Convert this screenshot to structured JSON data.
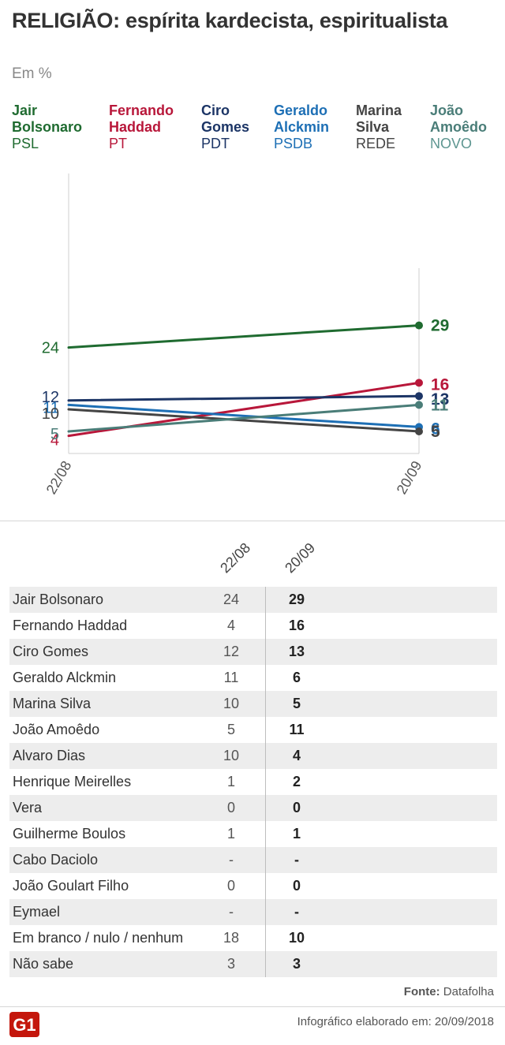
{
  "header": {
    "title": "RELIGIÃO: espírita kardecista, espiritualista",
    "subtitle": "Em %"
  },
  "legend": [
    {
      "name": "Jair Bolsonaro",
      "line1": "Jair",
      "line2": "Bolsonaro",
      "party": "PSL",
      "color": "#1f6b30",
      "party_color": "#1f6b30"
    },
    {
      "name": "Fernando Haddad",
      "line1": "Fernando",
      "line2": "Haddad",
      "party": "PT",
      "color": "#b8173a",
      "party_color": "#b8173a"
    },
    {
      "name": "Ciro Gomes",
      "line1": "Ciro",
      "line2": "Gomes",
      "party": "PDT",
      "color": "#1c3566",
      "party_color": "#1c3566"
    },
    {
      "name": "Geraldo Alckmin",
      "line1": "Geraldo",
      "line2": "Alckmin",
      "party": "PSDB",
      "color": "#1d6fb5",
      "party_color": "#1d6fb5"
    },
    {
      "name": "Marina Silva",
      "line1": "Marina",
      "line2": "Silva",
      "party": "REDE",
      "color": "#444444",
      "party_color": "#444444"
    },
    {
      "name": "João Amoêdo",
      "line1": "João",
      "line2": "Amoêdo",
      "party": "NOVO",
      "color": "#4a7d78",
      "party_color": "#5e9691"
    }
  ],
  "chart_data": {
    "type": "line",
    "title": "RELIGIÃO: espírita kardecista, espiritualista",
    "subtitle": "Em %",
    "x": [
      "22/08",
      "20/09"
    ],
    "ylim": [
      0,
      40
    ],
    "grid": false,
    "series": [
      {
        "name": "Jair Bolsonaro",
        "values": [
          24,
          29
        ],
        "color": "#1f6b30",
        "start_label": "24",
        "end_label": "29"
      },
      {
        "name": "Fernando Haddad",
        "values": [
          4,
          16
        ],
        "color": "#b8173a",
        "start_label": "4",
        "end_label": "16"
      },
      {
        "name": "Ciro Gomes",
        "values": [
          12,
          13
        ],
        "color": "#1c3566",
        "start_label": "12",
        "end_label": "13"
      },
      {
        "name": "Geraldo Alckmin",
        "values": [
          11,
          6
        ],
        "color": "#1d6fb5",
        "start_label": "11",
        "end_label": "6"
      },
      {
        "name": "Marina Silva",
        "values": [
          10,
          5
        ],
        "color": "#444444",
        "start_label": "10",
        "end_label": "5"
      },
      {
        "name": "João Amoêdo",
        "values": [
          5,
          11
        ],
        "color": "#4a7d78",
        "start_label": "5",
        "end_label": "11"
      }
    ]
  },
  "table": {
    "columns": [
      "22/08",
      "20/09"
    ],
    "rows": [
      {
        "name": "Jair Bolsonaro",
        "a": "24",
        "b": "29"
      },
      {
        "name": "Fernando Haddad",
        "a": "4",
        "b": "16"
      },
      {
        "name": "Ciro Gomes",
        "a": "12",
        "b": "13"
      },
      {
        "name": "Geraldo Alckmin",
        "a": "11",
        "b": "6"
      },
      {
        "name": "Marina Silva",
        "a": "10",
        "b": "5"
      },
      {
        "name": "João Amoêdo",
        "a": "5",
        "b": "11"
      },
      {
        "name": "Alvaro Dias",
        "a": "10",
        "b": "4"
      },
      {
        "name": "Henrique Meirelles",
        "a": "1",
        "b": "2"
      },
      {
        "name": "Vera",
        "a": "0",
        "b": "0"
      },
      {
        "name": "Guilherme Boulos",
        "a": "1",
        "b": "1"
      },
      {
        "name": "Cabo Daciolo",
        "a": "-",
        "b": "-"
      },
      {
        "name": "João Goulart Filho",
        "a": "0",
        "b": "0"
      },
      {
        "name": "Eymael",
        "a": "-",
        "b": "-"
      },
      {
        "name": "Em branco / nulo / nenhum",
        "a": "18",
        "b": "10"
      },
      {
        "name": "Não sabe",
        "a": "3",
        "b": "3"
      }
    ]
  },
  "footer": {
    "source_label": "Fonte:",
    "source_value": "Datafolha",
    "made_label": "Infográfico elaborado em:",
    "made_date": "20/09/2018",
    "logo_text": "G1",
    "logo_color": "#c4170c"
  }
}
